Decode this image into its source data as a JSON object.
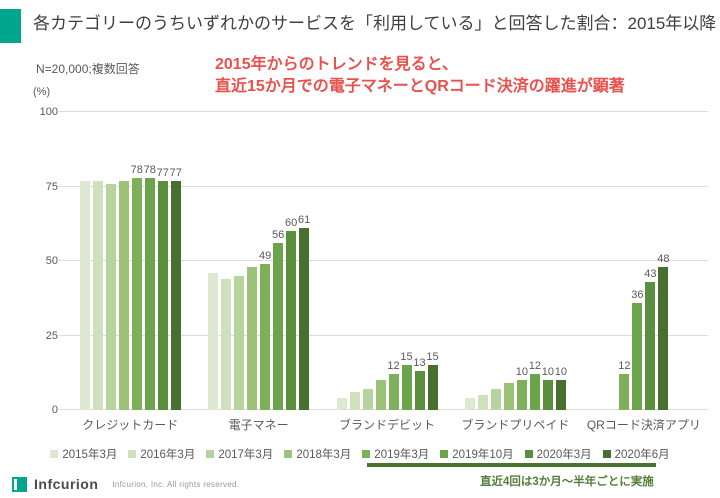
{
  "title": "各カテゴリーのうちいずれかのサービスを「利用している」と回答した割合：2015年以降",
  "sample_note": "N=20,000;複数回答",
  "annotation": {
    "line1": "2015年からのトレンドを見ると、",
    "line2": "直近15か月での電子マネーとQRコード決済の躍進が顕著",
    "color": "#e8514d"
  },
  "recent_note": {
    "text": "直近4回は3か月～半年ごとに実施",
    "color": "#567e3e",
    "underline_color": "#4a7230"
  },
  "footer": {
    "logo_text": "Infcurion",
    "copyright": "Infcurion, Inc.  All rights reserved.",
    "accent_color": "#00a78e"
  },
  "chart_data": {
    "type": "bar",
    "unit_label": "(%)",
    "ylim": [
      0,
      100
    ],
    "yticks": [
      0,
      25,
      50,
      75,
      100
    ],
    "grid": true,
    "legend_position": "bottom",
    "categories": [
      "クレジットカード",
      "電子マネー",
      "ブランドデビット",
      "ブランドプリペイド",
      "QRコード決済アプリ"
    ],
    "series": [
      {
        "name": "2015年3月",
        "color": "#dce8d2",
        "show_labels": false,
        "values": [
          77,
          46,
          4,
          4,
          null
        ]
      },
      {
        "name": "2016年3月",
        "color": "#cde1bd",
        "show_labels": false,
        "values": [
          77,
          44,
          6,
          5,
          null
        ]
      },
      {
        "name": "2017年3月",
        "color": "#b5d49e",
        "show_labels": false,
        "values": [
          76,
          45,
          7,
          7,
          null
        ]
      },
      {
        "name": "2018年3月",
        "color": "#9bc277",
        "show_labels": false,
        "values": [
          77,
          48,
          10,
          9,
          null
        ]
      },
      {
        "name": "2019年3月",
        "color": "#7db058",
        "show_labels": true,
        "values": [
          78,
          49,
          12,
          10,
          12
        ]
      },
      {
        "name": "2019年10月",
        "color": "#6ba44a",
        "show_labels": true,
        "values": [
          78,
          56,
          15,
          12,
          36
        ]
      },
      {
        "name": "2020年3月",
        "color": "#5a8f3d",
        "show_labels": true,
        "values": [
          77,
          60,
          13,
          10,
          43
        ]
      },
      {
        "name": "2020年6月",
        "color": "#47702e",
        "show_labels": true,
        "values": [
          77,
          61,
          15,
          10,
          48
        ]
      }
    ]
  }
}
